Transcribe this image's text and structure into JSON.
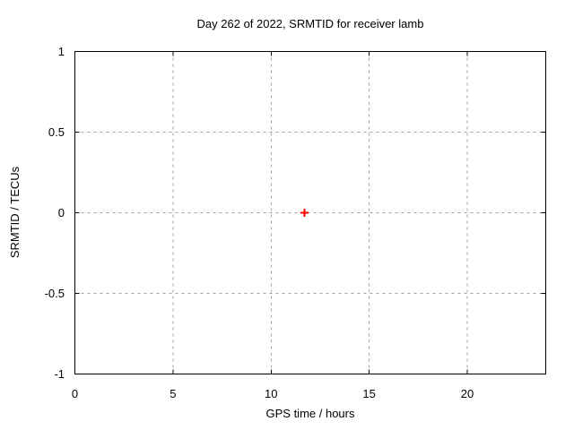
{
  "figure": {
    "background_color": "#ffffff"
  },
  "chart_data": {
    "type": "scatter",
    "title": "Day 262 of 2022, SRMTID for receiver lamb",
    "xlabel": "GPS time / hours",
    "ylabel": "SRMTID / TECUs",
    "xlim": [
      0,
      24
    ],
    "ylim": [
      -1,
      1
    ],
    "xticks": [
      0,
      5,
      10,
      15,
      20
    ],
    "yticks": [
      -1,
      -0.5,
      0,
      0.5,
      1
    ],
    "grid": true,
    "grid_style": "dotted",
    "legend": "none",
    "series": [
      {
        "name": "SRMTID",
        "marker": "plus",
        "color": "#ff0000",
        "points": [
          [
            11.7,
            0.0
          ]
        ]
      }
    ],
    "style": {
      "axis_color": "#000000",
      "grid_color": "#a0a0a0",
      "text_color": "#000000",
      "tick_length": 5,
      "marker_size": 4.5,
      "marker_stroke_width": 2
    }
  }
}
